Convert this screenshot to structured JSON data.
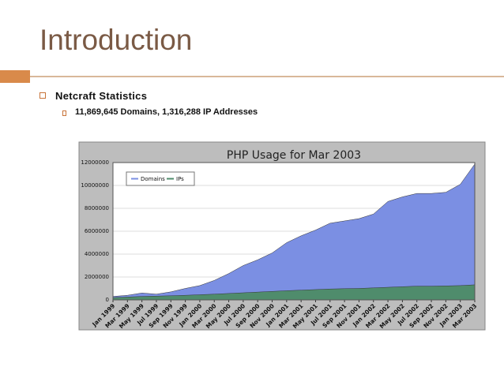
{
  "header": {
    "title": "Introduction"
  },
  "bullets": [
    {
      "text": "Netcraft Statistics",
      "sub": [
        "11,869,645 Domains, 1,316,288 IP Addresses"
      ]
    }
  ],
  "chart_data": {
    "type": "area",
    "title": "PHP Usage for Mar 2003",
    "categories": [
      "Jan 1999",
      "Mar 1999",
      "May 1999",
      "Jul 1999",
      "Sep 1999",
      "Nov 1999",
      "Jan 2000",
      "Mar 2000",
      "May 2000",
      "Jul 2000",
      "Sep 2000",
      "Nov 2000",
      "Jan 2001",
      "Mar 2001",
      "May 2001",
      "Jul 2001",
      "Sep 2001",
      "Nov 2001",
      "Jan 2002",
      "Mar 2002",
      "May 2002",
      "Jul 2002",
      "Sep 2002",
      "Nov 2002",
      "Jan 2003",
      "Mar 2003"
    ],
    "series": [
      {
        "name": "Domains",
        "color": "#7b8fe3",
        "values": [
          300000,
          400000,
          600000,
          500000,
          700000,
          1000000,
          1250000,
          1700000,
          2300000,
          3000000,
          3500000,
          4100000,
          5000000,
          5600000,
          6100000,
          6700000,
          6900000,
          7100000,
          7500000,
          8600000,
          9000000,
          9300000,
          9300000,
          9400000,
          10100000,
          11869645
        ]
      },
      {
        "name": "IPs",
        "color": "#4f8c6c",
        "values": [
          200000,
          250000,
          300000,
          330000,
          360000,
          400000,
          450000,
          500000,
          560000,
          620000,
          680000,
          740000,
          800000,
          850000,
          900000,
          950000,
          980000,
          1000000,
          1050000,
          1100000,
          1150000,
          1200000,
          1200000,
          1220000,
          1250000,
          1316288
        ]
      }
    ],
    "ylim": [
      0,
      12000000
    ],
    "yticks": [
      0,
      2000000,
      4000000,
      6000000,
      8000000,
      10000000,
      12000000
    ],
    "grid": true,
    "legend": "upper left"
  }
}
